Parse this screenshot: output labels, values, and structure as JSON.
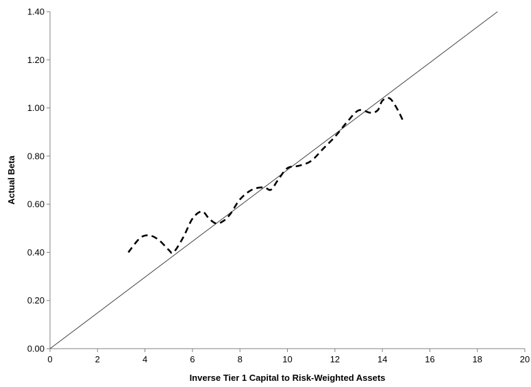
{
  "chart_data": {
    "type": "line",
    "xlabel": "Inverse Tier 1 Capital to Risk-Weighted Assets",
    "ylabel": "Actual Beta",
    "xlim": [
      0,
      20
    ],
    "ylim": [
      0,
      1.4
    ],
    "x_ticks": [
      0,
      2,
      4,
      6,
      8,
      10,
      12,
      14,
      16,
      18,
      20
    ],
    "x_tick_labels": [
      "0",
      "2",
      "4",
      "6",
      "8",
      "10",
      "12",
      "14",
      "16",
      "18",
      "20"
    ],
    "y_ticks": [
      0,
      0.2,
      0.4,
      0.6,
      0.8,
      1.0,
      1.2,
      1.4
    ],
    "y_tick_labels": [
      "0.00",
      "0.20",
      "0.40",
      "0.60",
      "0.80",
      "1.00",
      "1.20",
      "1.40"
    ],
    "grid": false,
    "series": [
      {
        "style": "solid",
        "color": "#404040",
        "x": [
          0,
          18.85
        ],
        "y": [
          0,
          1.4
        ]
      },
      {
        "style": "dashed",
        "color": "#000000",
        "x": [
          3.3,
          3.8,
          4.2,
          4.6,
          5.0,
          5.2,
          5.6,
          6.0,
          6.4,
          6.7,
          7.0,
          7.3,
          7.6,
          8.0,
          8.5,
          9.0,
          9.3,
          9.6,
          10.0,
          10.5,
          11.0,
          11.5,
          12.0,
          12.5,
          13.0,
          13.5,
          13.8,
          14.0,
          14.3,
          14.6,
          14.9
        ],
        "y": [
          0.4,
          0.46,
          0.47,
          0.45,
          0.41,
          0.4,
          0.46,
          0.54,
          0.57,
          0.54,
          0.52,
          0.53,
          0.56,
          0.62,
          0.66,
          0.67,
          0.66,
          0.7,
          0.75,
          0.76,
          0.78,
          0.83,
          0.88,
          0.94,
          0.99,
          0.98,
          0.99,
          1.03,
          1.04,
          1.0,
          0.94
        ]
      }
    ]
  }
}
